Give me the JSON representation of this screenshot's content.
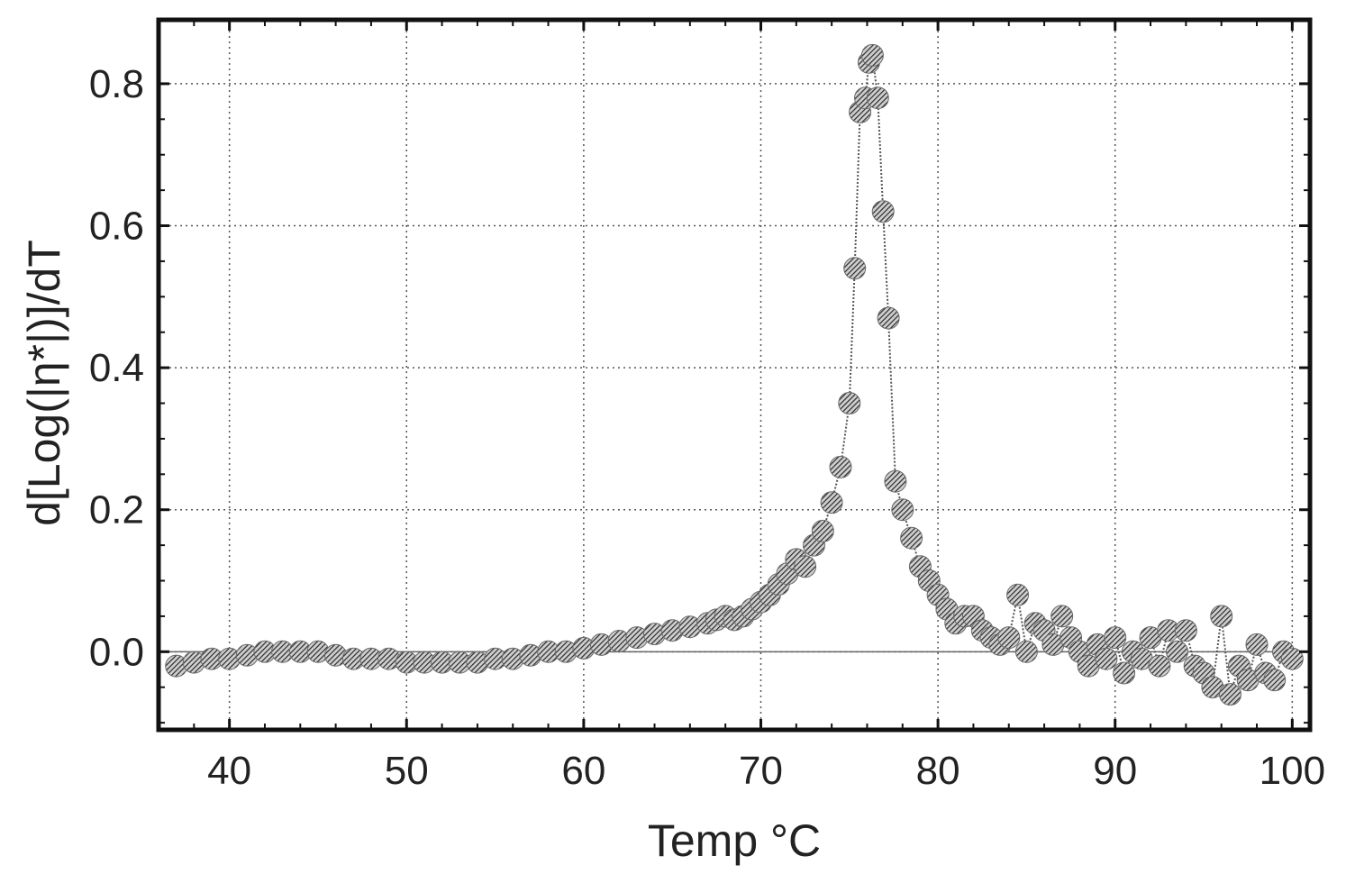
{
  "chart_data": {
    "type": "scatter",
    "title": "",
    "xlabel": "Temp °C",
    "ylabel": "d[Log(|η*|)]/dT",
    "xlim": [
      36,
      101
    ],
    "ylim": [
      -0.11,
      0.89
    ],
    "x_ticks": [
      40,
      50,
      60,
      70,
      80,
      90,
      100
    ],
    "x_tick_labels": [
      "40",
      "50",
      "60",
      "70",
      "80",
      "90",
      "100"
    ],
    "y_ticks": [
      0.0,
      0.2,
      0.4,
      0.6,
      0.8
    ],
    "y_tick_labels": [
      "0.0",
      "0.2",
      "0.4",
      "0.6",
      "0.8"
    ],
    "grid": true,
    "legend": false,
    "colors": {
      "marker": "#2a2a2a",
      "line": "#555555",
      "grid": "#555555",
      "frame": "#111111",
      "zero_line": "#666666"
    },
    "series": [
      {
        "x": [
          37,
          38,
          39,
          40,
          41,
          42,
          43,
          44,
          45,
          46,
          47,
          48,
          49,
          50,
          51,
          52,
          53,
          54,
          55,
          56,
          57,
          58,
          59,
          60,
          61,
          62,
          63,
          64,
          65,
          66,
          67,
          67.5,
          68,
          68.5,
          69,
          69.5,
          70,
          70.5,
          71,
          71.5,
          72,
          72.5,
          73,
          73.5,
          74,
          74.5,
          75,
          75.3,
          75.6,
          75.9,
          76.1,
          76.3,
          76.6,
          76.9,
          77.2,
          77.6,
          78,
          78.5,
          79,
          79.5,
          80,
          80.5,
          81,
          81.5,
          82,
          82.5,
          83,
          83.5,
          84,
          84.5,
          85,
          85.5,
          86,
          86.5,
          87,
          87.5,
          88,
          88.5,
          89,
          89.5,
          90,
          90.5,
          91,
          91.5,
          92,
          92.5,
          93,
          93.5,
          94,
          94.5,
          95,
          95.5,
          96,
          96.5,
          97,
          97.5,
          98,
          98.5,
          99,
          99.5,
          100
        ],
        "y": [
          -0.02,
          -0.015,
          -0.01,
          -0.01,
          -0.005,
          0.0,
          0.0,
          0.0,
          0.0,
          -0.005,
          -0.01,
          -0.01,
          -0.01,
          -0.015,
          -0.015,
          -0.015,
          -0.015,
          -0.015,
          -0.01,
          -0.01,
          -0.005,
          0.0,
          0.0,
          0.005,
          0.01,
          0.015,
          0.02,
          0.025,
          0.03,
          0.035,
          0.04,
          0.045,
          0.05,
          0.045,
          0.05,
          0.06,
          0.07,
          0.08,
          0.095,
          0.11,
          0.13,
          0.12,
          0.15,
          0.17,
          0.21,
          0.26,
          0.35,
          0.54,
          0.76,
          0.78,
          0.83,
          0.84,
          0.78,
          0.62,
          0.47,
          0.24,
          0.2,
          0.16,
          0.12,
          0.1,
          0.08,
          0.06,
          0.04,
          0.05,
          0.05,
          0.03,
          0.02,
          0.01,
          0.02,
          0.08,
          0.0,
          0.04,
          0.03,
          0.01,
          0.05,
          0.02,
          0.0,
          -0.02,
          0.01,
          -0.01,
          0.02,
          -0.03,
          0.0,
          -0.01,
          0.02,
          -0.02,
          0.03,
          0.0,
          0.03,
          -0.02,
          -0.03,
          -0.05,
          0.05,
          -0.06,
          -0.02,
          -0.04,
          0.01,
          -0.03,
          -0.04,
          0.0,
          -0.01
        ]
      }
    ]
  }
}
